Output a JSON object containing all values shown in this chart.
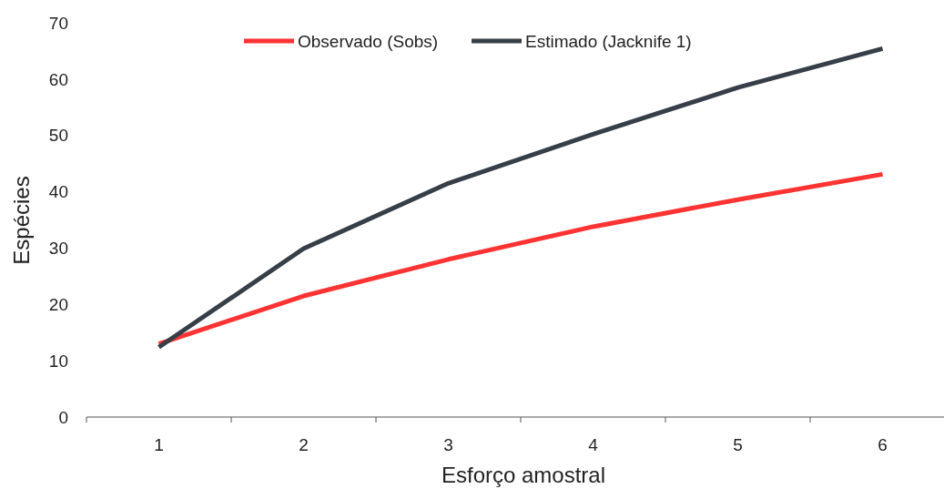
{
  "chart_data": {
    "type": "line",
    "xlabel": "Esforço amostral",
    "ylabel": "Espécies",
    "categories": [
      "1",
      "2",
      "3",
      "4",
      "5",
      "6"
    ],
    "series": [
      {
        "name": "Observado (Sobs)",
        "color": "#ff3333",
        "values": [
          13,
          21.5,
          28,
          33.8,
          38.6,
          43.1
        ]
      },
      {
        "name": "Estimado (Jacknife 1)",
        "color": "#363e47",
        "values": [
          12.4,
          29.9,
          41.5,
          50.2,
          58.5,
          65.4
        ]
      }
    ],
    "ylim": [
      0,
      70
    ],
    "yticks": [
      0,
      10,
      20,
      30,
      40,
      50,
      60,
      70
    ],
    "grid": false,
    "legend": "top",
    "marker": "none",
    "line_style": "solid"
  }
}
